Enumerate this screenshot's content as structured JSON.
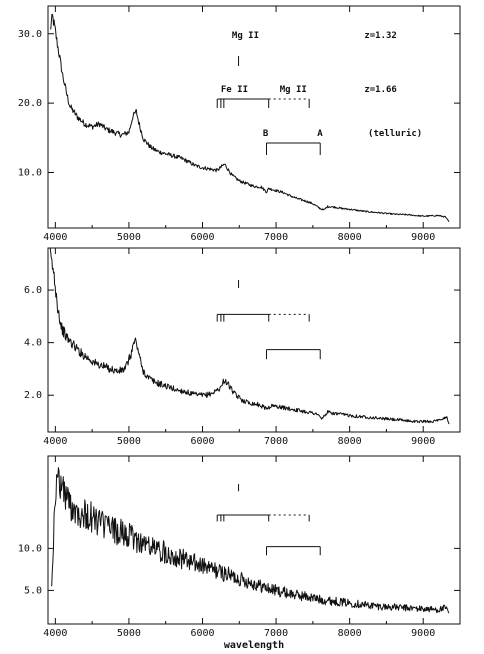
{
  "chart_data": [
    {
      "type": "line",
      "xlim": [
        3900,
        9500
      ],
      "ylim": [
        2.0,
        34.0
      ],
      "xticks": [
        4000,
        5000,
        6000,
        7000,
        8000,
        9000
      ],
      "yticks": [
        10.0,
        20.0,
        30.0
      ],
      "xtick_labels": [
        "4000",
        "5000",
        "6000",
        "7000",
        "8000",
        "9000"
      ],
      "ytick_labels": [
        "10.0",
        "20.0",
        "30.0"
      ],
      "xlabel": "",
      "annotations": {
        "mgii_132": "Mg II",
        "z_132": "z=1.32",
        "feii": "Fe II",
        "mgii_166": "Mg II",
        "z_166": "z=1.66",
        "telluric_B": "B",
        "telluric_A": "A",
        "telluric": "(telluric)"
      },
      "series": [
        {
          "x": [
            3930,
            3960,
            3990,
            4020,
            4060,
            4100,
            4150,
            4200,
            4300,
            4400,
            4500,
            4600,
            4700,
            4800,
            4900,
            5000,
            5050,
            5100,
            5150,
            5200,
            5300,
            5400,
            5500,
            5600,
            5700,
            5800,
            5900,
            6000,
            6100,
            6200,
            6300,
            6400,
            6500,
            6600,
            6700,
            6800,
            6870,
            6900,
            7000,
            7100,
            7200,
            7300,
            7400,
            7500,
            7600,
            7650,
            7700,
            7800,
            7900,
            8000,
            8200,
            8400,
            8600,
            8800,
            9000,
            9200,
            9300,
            9350
          ],
          "y": [
            30.5,
            32.5,
            31.0,
            29.0,
            26.5,
            24.0,
            21.5,
            19.5,
            18.0,
            17.0,
            16.6,
            17.0,
            16.2,
            15.8,
            15.4,
            15.8,
            18.0,
            18.8,
            16.5,
            14.8,
            13.6,
            13.0,
            12.7,
            12.4,
            12.1,
            11.6,
            11.0,
            10.7,
            10.5,
            10.3,
            11.2,
            9.6,
            8.8,
            8.4,
            8.0,
            7.9,
            7.2,
            7.7,
            7.4,
            7.1,
            6.6,
            6.2,
            5.9,
            5.5,
            4.8,
            4.6,
            5.1,
            5.0,
            4.8,
            4.7,
            4.4,
            4.2,
            4.0,
            3.9,
            3.7,
            3.8,
            3.6,
            2.9
          ]
        }
      ]
    },
    {
      "type": "line",
      "xlim": [
        3900,
        9500
      ],
      "ylim": [
        0.6,
        7.6
      ],
      "xticks": [
        4000,
        5000,
        6000,
        7000,
        8000,
        9000
      ],
      "yticks": [
        2.0,
        4.0,
        6.0
      ],
      "xtick_labels": [
        "4000",
        "5000",
        "6000",
        "7000",
        "8000",
        "9000"
      ],
      "ytick_labels": [
        "2.0",
        "4.0",
        "6.0"
      ],
      "xlabel": "",
      "series": [
        {
          "x": [
            3930,
            3960,
            3990,
            4030,
            4080,
            4150,
            4250,
            4350,
            4450,
            4550,
            4650,
            4750,
            4850,
            4950,
            5020,
            5080,
            5120,
            5180,
            5250,
            5350,
            5450,
            5550,
            5650,
            5750,
            5850,
            5950,
            6050,
            6150,
            6250,
            6300,
            6350,
            6450,
            6550,
            6650,
            6750,
            6870,
            6950,
            7050,
            7150,
            7250,
            7350,
            7450,
            7550,
            7620,
            7700,
            7800,
            7950,
            8100,
            8300,
            8500,
            8700,
            8900,
            9100,
            9250,
            9320,
            9350
          ],
          "y": [
            7.3,
            6.9,
            6.4,
            5.4,
            4.6,
            4.2,
            3.9,
            3.6,
            3.4,
            3.2,
            3.1,
            3.0,
            2.9,
            3.0,
            3.5,
            4.1,
            3.8,
            3.0,
            2.7,
            2.5,
            2.4,
            2.3,
            2.2,
            2.15,
            2.05,
            2.0,
            2.0,
            2.1,
            2.3,
            2.6,
            2.4,
            2.0,
            1.8,
            1.7,
            1.65,
            1.5,
            1.6,
            1.55,
            1.5,
            1.45,
            1.4,
            1.35,
            1.3,
            1.1,
            1.35,
            1.3,
            1.25,
            1.2,
            1.15,
            1.1,
            1.05,
            1.0,
            1.0,
            1.05,
            1.2,
            0.9
          ]
        }
      ]
    },
    {
      "type": "line",
      "xlim": [
        3900,
        9500
      ],
      "ylim": [
        1.0,
        21.0
      ],
      "xticks": [
        4000,
        5000,
        6000,
        7000,
        8000,
        9000
      ],
      "yticks": [
        5.0,
        10.0
      ],
      "xtick_labels": [
        "4000",
        "5000",
        "6000",
        "7000",
        "8000",
        "9000"
      ],
      "ytick_labels": [
        "5.0",
        "10.0"
      ],
      "xlabel": "wavelength",
      "series": [
        {
          "x": [
            3950,
            4000,
            4050,
            4100,
            4200,
            4300,
            4400,
            4500,
            4600,
            4700,
            4800,
            4900,
            5000,
            5100,
            5200,
            5300,
            5400,
            5500,
            5600,
            5700,
            5800,
            5900,
            6000,
            6100,
            6200,
            6300,
            6400,
            6500,
            6600,
            6700,
            6800,
            6900,
            7000,
            7100,
            7200,
            7300,
            7400,
            7500,
            7600,
            7700,
            7800,
            7900,
            8000,
            8200,
            8400,
            8600,
            8800,
            9000,
            9200,
            9300,
            9350
          ],
          "y": [
            6.0,
            16.5,
            18.5,
            17.0,
            15.2,
            14.6,
            14.0,
            13.6,
            13.1,
            12.6,
            12.2,
            11.8,
            11.4,
            11.0,
            10.6,
            10.2,
            9.8,
            9.5,
            9.2,
            8.8,
            8.5,
            8.2,
            7.9,
            7.6,
            7.3,
            7.0,
            6.7,
            6.4,
            6.1,
            5.8,
            5.5,
            5.2,
            5.0,
            4.8,
            4.6,
            4.4,
            4.3,
            4.1,
            3.9,
            3.8,
            3.7,
            3.6,
            3.5,
            3.3,
            3.1,
            3.0,
            2.9,
            2.8,
            2.7,
            2.9,
            2.3
          ]
        }
      ]
    }
  ]
}
